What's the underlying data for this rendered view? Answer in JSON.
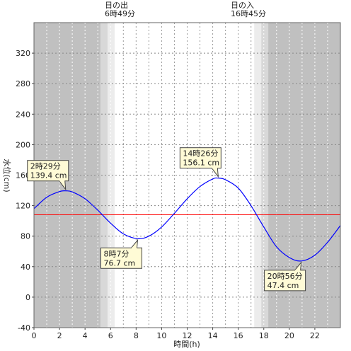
{
  "chart_data": {
    "type": "line",
    "title": "",
    "xlabel": "時間(h)",
    "ylabel": "水位(cm)",
    "xlim": [
      0,
      24
    ],
    "ylim": [
      -40,
      360
    ],
    "x_ticks": [
      0,
      2,
      4,
      6,
      8,
      10,
      12,
      14,
      16,
      18,
      20,
      22
    ],
    "y_ticks": [
      -40,
      0,
      40,
      80,
      120,
      160,
      200,
      240,
      280,
      320
    ],
    "grid": true,
    "colors": {
      "tide": "#0000ff",
      "reference": "#ff0000",
      "night": "#c0c0c0",
      "twilight_dark": "#d8d8d8",
      "twilight_light": "#ececec",
      "day": "#ffffff"
    },
    "sunrise": {
      "label": "日の出",
      "time": "6時49分",
      "hour": 6.82
    },
    "sunset": {
      "label": "日の入",
      "time": "16時45分",
      "hour": 16.75
    },
    "reference_level": 108,
    "series": [
      {
        "x": [
          0,
          1,
          2,
          2.48,
          3,
          4,
          5,
          6,
          7,
          8.12,
          9,
          10,
          11,
          12,
          13,
          14,
          14.43,
          15,
          16,
          17,
          18,
          19,
          20,
          20.93,
          22,
          23,
          24
        ],
        "values": [
          116,
          131,
          138.5,
          139.4,
          138,
          129,
          114,
          97,
          83,
          76.7,
          80,
          92,
          110,
          129,
          145,
          155,
          156.1,
          154,
          143,
          120,
          92,
          66,
          52,
          47.4,
          55,
          72,
          94
        ]
      }
    ],
    "annotations": [
      {
        "time": "2時29分",
        "value": "139.4 cm",
        "x": 2.48,
        "y": 139.4,
        "pos": "above"
      },
      {
        "time": "8時7分",
        "value": "76.7 cm",
        "x": 8.12,
        "y": 76.7,
        "pos": "below"
      },
      {
        "time": "14時26分",
        "value": "156.1 cm",
        "x": 14.43,
        "y": 156.1,
        "pos": "above"
      },
      {
        "time": "20時56分",
        "value": "47.4 cm",
        "x": 20.93,
        "y": 47.4,
        "pos": "below"
      }
    ]
  }
}
